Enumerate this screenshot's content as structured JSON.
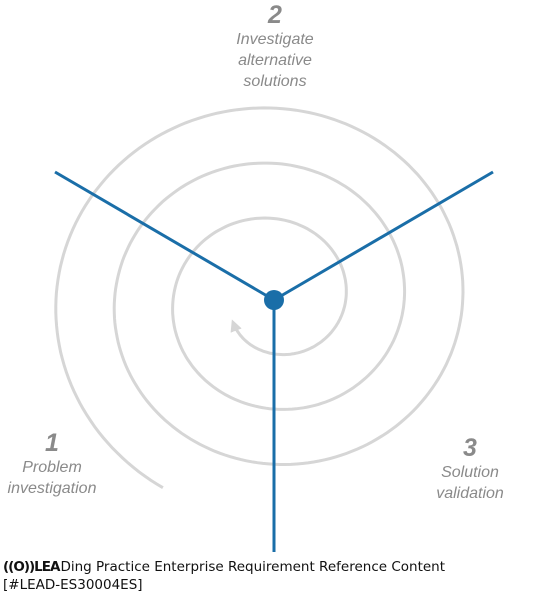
{
  "diagram": {
    "phases": [
      {
        "number": "1",
        "label": "Problem\ninvestigation"
      },
      {
        "number": "2",
        "label": "Investigate\nalternative\nsolutions"
      },
      {
        "number": "3",
        "label": "Solution\nvalidation"
      }
    ],
    "colors": {
      "axis": "#1a6ea8",
      "spiral": "#d6d6d6",
      "label": "#8a8a8a"
    }
  },
  "footer": {
    "logo_text": "((O))LEA",
    "line1": "Ding Practice Enterprise Requirement Reference Content",
    "line2": "[#LEAD-ES30004ES]"
  }
}
